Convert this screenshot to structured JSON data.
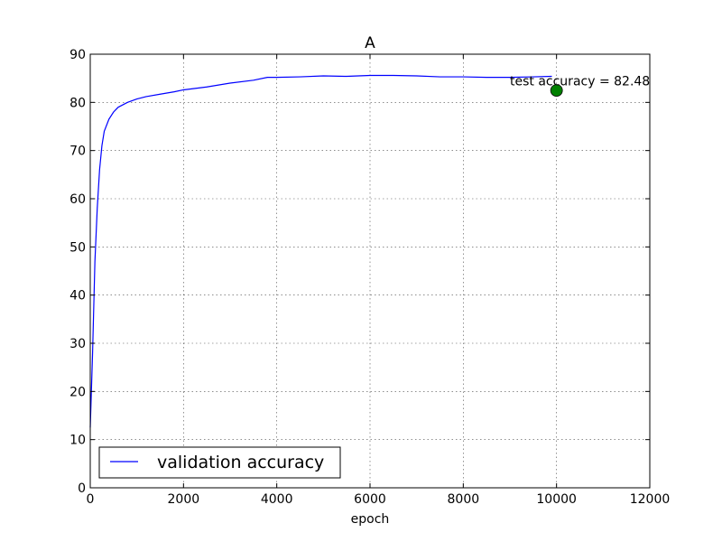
{
  "chart_data": {
    "type": "line",
    "title": "A",
    "xlabel": "epoch",
    "ylabel": "",
    "xlim": [
      0,
      12000
    ],
    "ylim": [
      0,
      90
    ],
    "x_ticks": [
      0,
      2000,
      4000,
      6000,
      8000,
      10000,
      12000
    ],
    "y_ticks": [
      0,
      10,
      20,
      30,
      40,
      50,
      60,
      70,
      80,
      90
    ],
    "grid": true,
    "legend": {
      "placement": "lower-left",
      "entries": [
        "validation accuracy"
      ]
    },
    "series": [
      {
        "name": "validation accuracy",
        "color": "#0000ff",
        "x": [
          0,
          50,
          100,
          150,
          200,
          250,
          300,
          400,
          500,
          600,
          800,
          1000,
          1200,
          1500,
          1800,
          2000,
          2500,
          3000,
          3500,
          3800,
          4000,
          4500,
          5000,
          5500,
          6000,
          6500,
          7000,
          7500,
          8000,
          8500,
          9000,
          9500,
          9900
        ],
        "y": [
          12.5,
          28,
          47,
          58,
          66,
          71,
          74,
          76.5,
          78,
          79,
          80,
          80.7,
          81.2,
          81.7,
          82.2,
          82.6,
          83.2,
          84,
          84.6,
          85.2,
          85.2,
          85.3,
          85.5,
          85.4,
          85.6,
          85.6,
          85.5,
          85.3,
          85.3,
          85.2,
          85.2,
          85.3,
          85.4
        ]
      },
      {
        "name": "test accuracy",
        "type": "scatter",
        "color": "#008000",
        "x": [
          10000
        ],
        "y": [
          82.48
        ]
      }
    ],
    "annotations": [
      {
        "text": "test accuracy = 82.48",
        "x": 9000,
        "y": 84.5
      }
    ]
  }
}
